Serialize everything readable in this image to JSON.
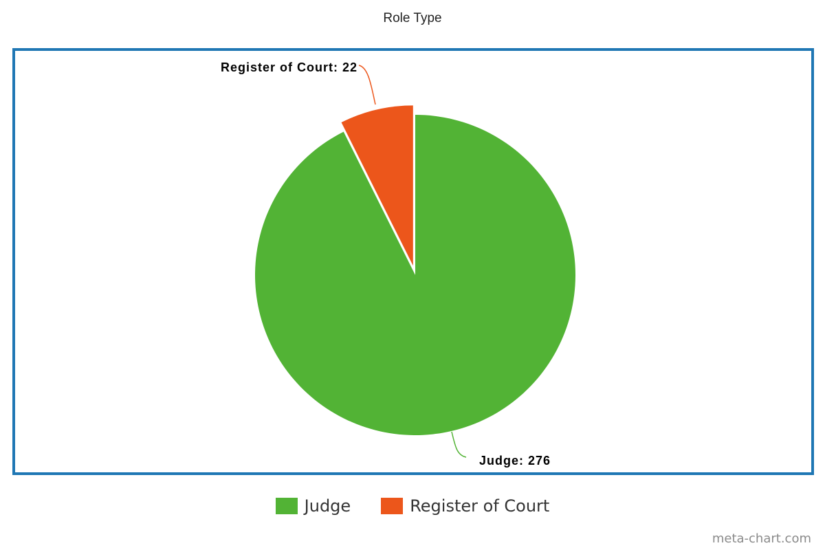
{
  "chart_data": {
    "type": "pie",
    "title": "Role Type",
    "slices": [
      {
        "name": "Judge",
        "value": 276,
        "label": "Judge: 276",
        "color": "#52b335"
      },
      {
        "name": "Register of Court",
        "value": 22,
        "label": "Register of Court: 22",
        "color": "#ec561b"
      }
    ],
    "exploded": "Register of Court",
    "legend_position": "bottom"
  },
  "legend": {
    "items": [
      {
        "label": "Judge",
        "color": "#52b335"
      },
      {
        "label": "Register of Court",
        "color": "#ec561b"
      }
    ]
  },
  "credit": "meta-chart.com",
  "frame_color": "#1f77b4"
}
